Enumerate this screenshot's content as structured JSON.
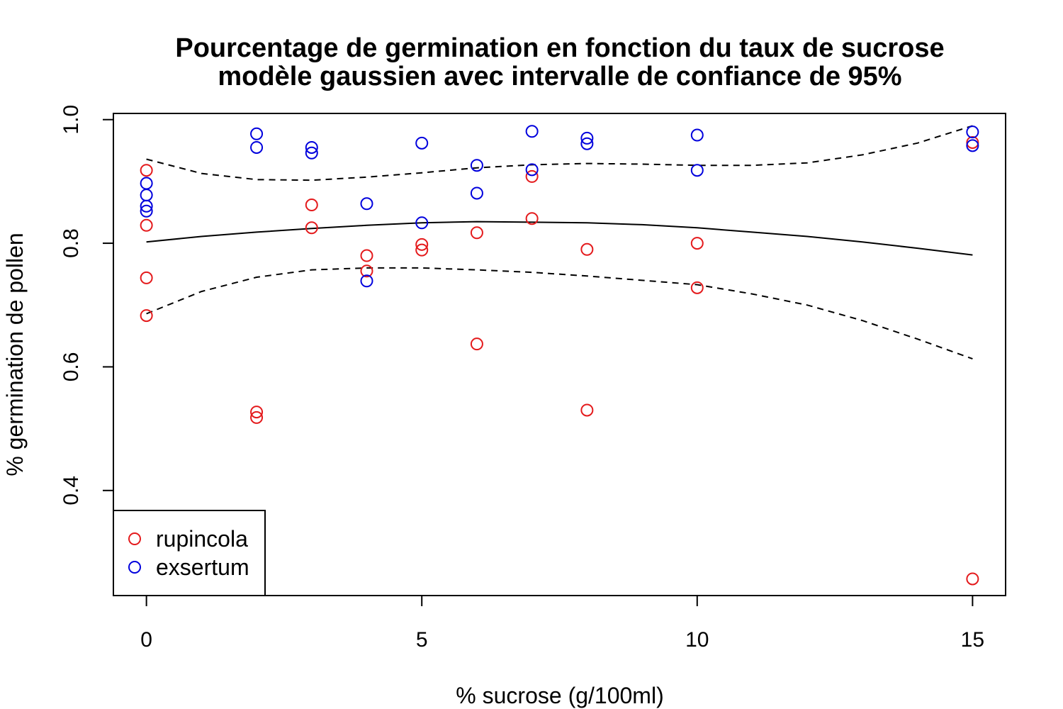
{
  "chart_data": {
    "type": "scatter",
    "title": "Pourcentage de germination en fonction du taux de sucrose",
    "subtitle": "modèle gaussien avec intervalle de confiance de 95%",
    "xlabel": "% sucrose (g/100ml)",
    "ylabel": "% germination de pollen",
    "xlim": [
      -0.6,
      15.6
    ],
    "ylim": [
      0.23,
      1.01
    ],
    "x_ticks": [
      0,
      5,
      10,
      15
    ],
    "y_ticks": [
      0.4,
      0.6,
      0.8,
      1.0
    ],
    "x_tick_labels": [
      "0",
      "5",
      "10",
      "15"
    ],
    "y_tick_labels": [
      "0.4",
      "0.6",
      "0.8",
      "1.0"
    ],
    "grid": false,
    "legend_position": "bottom-left",
    "series": [
      {
        "name": "rupincola",
        "color": "#e41a1c",
        "points": [
          [
            0,
            0.918
          ],
          [
            0,
            0.829
          ],
          [
            0,
            0.744
          ],
          [
            0,
            0.683
          ],
          [
            2,
            0.527
          ],
          [
            2,
            0.518
          ],
          [
            3,
            0.862
          ],
          [
            3,
            0.825
          ],
          [
            4,
            0.78
          ],
          [
            4,
            0.755
          ],
          [
            5,
            0.798
          ],
          [
            5,
            0.789
          ],
          [
            6,
            0.817
          ],
          [
            6,
            0.637
          ],
          [
            7,
            0.908
          ],
          [
            7,
            0.84
          ],
          [
            8,
            0.79
          ],
          [
            8,
            0.53
          ],
          [
            10,
            0.8
          ],
          [
            10,
            0.728
          ],
          [
            15,
            0.963
          ],
          [
            15,
            0.257
          ]
        ]
      },
      {
        "name": "exsertum",
        "color": "#0000dd",
        "points": [
          [
            0,
            0.897
          ],
          [
            0,
            0.878
          ],
          [
            0,
            0.86
          ],
          [
            0,
            0.852
          ],
          [
            2,
            0.977
          ],
          [
            2,
            0.955
          ],
          [
            3,
            0.955
          ],
          [
            3,
            0.946
          ],
          [
            4,
            0.864
          ],
          [
            4,
            0.739
          ],
          [
            5,
            0.962
          ],
          [
            5,
            0.833
          ],
          [
            6,
            0.926
          ],
          [
            6,
            0.881
          ],
          [
            7,
            0.981
          ],
          [
            7,
            0.919
          ],
          [
            8,
            0.97
          ],
          [
            8,
            0.961
          ],
          [
            10,
            0.975
          ],
          [
            10,
            0.918
          ],
          [
            15,
            0.98
          ],
          [
            15,
            0.958
          ]
        ]
      }
    ],
    "model_fit": {
      "x": [
        0,
        1,
        2,
        3,
        4,
        5,
        6,
        7,
        8,
        9,
        10,
        11,
        12,
        13,
        14,
        15
      ],
      "y": [
        0.802,
        0.811,
        0.818,
        0.824,
        0.829,
        0.833,
        0.835,
        0.834,
        0.833,
        0.83,
        0.825,
        0.818,
        0.811,
        0.802,
        0.792,
        0.781
      ],
      "upper": [
        0.936,
        0.913,
        0.903,
        0.902,
        0.907,
        0.914,
        0.922,
        0.927,
        0.929,
        0.928,
        0.926,
        0.926,
        0.93,
        0.943,
        0.962,
        0.99
      ],
      "lower": [
        0.686,
        0.722,
        0.745,
        0.757,
        0.76,
        0.76,
        0.757,
        0.753,
        0.747,
        0.74,
        0.733,
        0.718,
        0.7,
        0.675,
        0.645,
        0.613
      ]
    }
  }
}
